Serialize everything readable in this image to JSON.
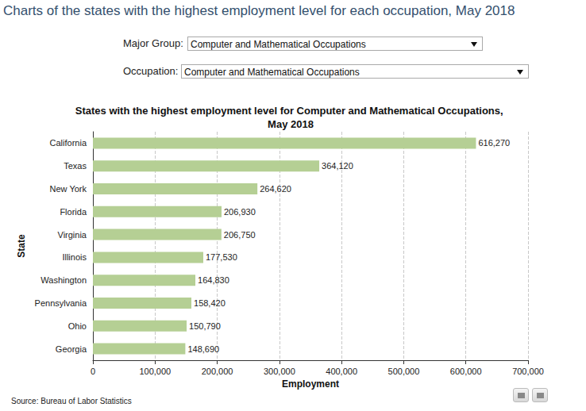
{
  "page": {
    "heading": "Charts of the states with the highest employment level for each occupation, May 2018",
    "major_group_label": "Major Group:",
    "major_group": "Computer and Mathematical Occupations",
    "occupation_label": "Occupation:",
    "occupation": "Computer and Mathematical Occupations",
    "source": "Source: Bureau of Labor Statistics"
  },
  "chart_data": {
    "type": "bar",
    "orientation": "horizontal",
    "title": "States with the highest employment level for Computer and Mathematical Occupations, May 2018",
    "x_label": "Employment",
    "y_label": "State",
    "categories": [
      "California",
      "Texas",
      "New York",
      "Florida",
      "Virginia",
      "Illinois",
      "Washington",
      "Pennsylvania",
      "Ohio",
      "Georgia"
    ],
    "values": [
      616270,
      364120,
      264620,
      206930,
      206750,
      177530,
      164830,
      158420,
      150790,
      148690
    ],
    "value_labels": [
      "616,270",
      "364,120",
      "264,620",
      "206,930",
      "206,750",
      "177,530",
      "164,830",
      "158,420",
      "150,790",
      "148,690"
    ],
    "color": "#b5cf94",
    "xlim": [
      0,
      700000
    ],
    "xticks": [
      0,
      {
        "value": 100000,
        "label": "100,000"
      },
      {
        "value": 200000,
        "label": "200,000"
      },
      {
        "value": 300000,
        "label": "300,000"
      },
      {
        "value": 400000,
        "label": "400,000"
      },
      {
        "value": 500000,
        "label": "500,000"
      },
      {
        "value": 600000,
        "label": "600,000"
      },
      {
        "value": 700000,
        "label": "700,000"
      }
    ],
    "grid": true,
    "data_labels": true
  }
}
